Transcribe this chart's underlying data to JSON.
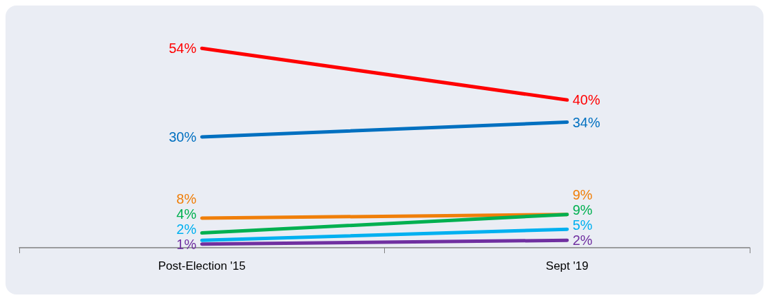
{
  "chart_data": {
    "type": "line",
    "categories": [
      "Post-Election '15",
      "Sept '19"
    ],
    "grid": false,
    "marker": "none",
    "line_style": "solid",
    "series": [
      {
        "color": "#ff0000",
        "values": [
          54,
          40
        ],
        "value_labels": [
          "54%",
          "40%"
        ]
      },
      {
        "color": "#0070c0",
        "values": [
          30,
          34
        ],
        "value_labels": [
          "30%",
          "34%"
        ]
      },
      {
        "color": "#f07f09",
        "values": [
          8,
          9
        ],
        "value_labels": [
          "8%",
          "9%"
        ]
      },
      {
        "color": "#00b050",
        "values": [
          4,
          9
        ],
        "value_labels": [
          "4%",
          "9%"
        ]
      },
      {
        "color": "#00b0f0",
        "values": [
          2,
          5
        ],
        "value_labels": [
          "2%",
          "5%"
        ]
      },
      {
        "color": "#7030a0",
        "values": [
          1,
          2
        ],
        "value_labels": [
          "1%",
          "2%"
        ]
      }
    ]
  }
}
